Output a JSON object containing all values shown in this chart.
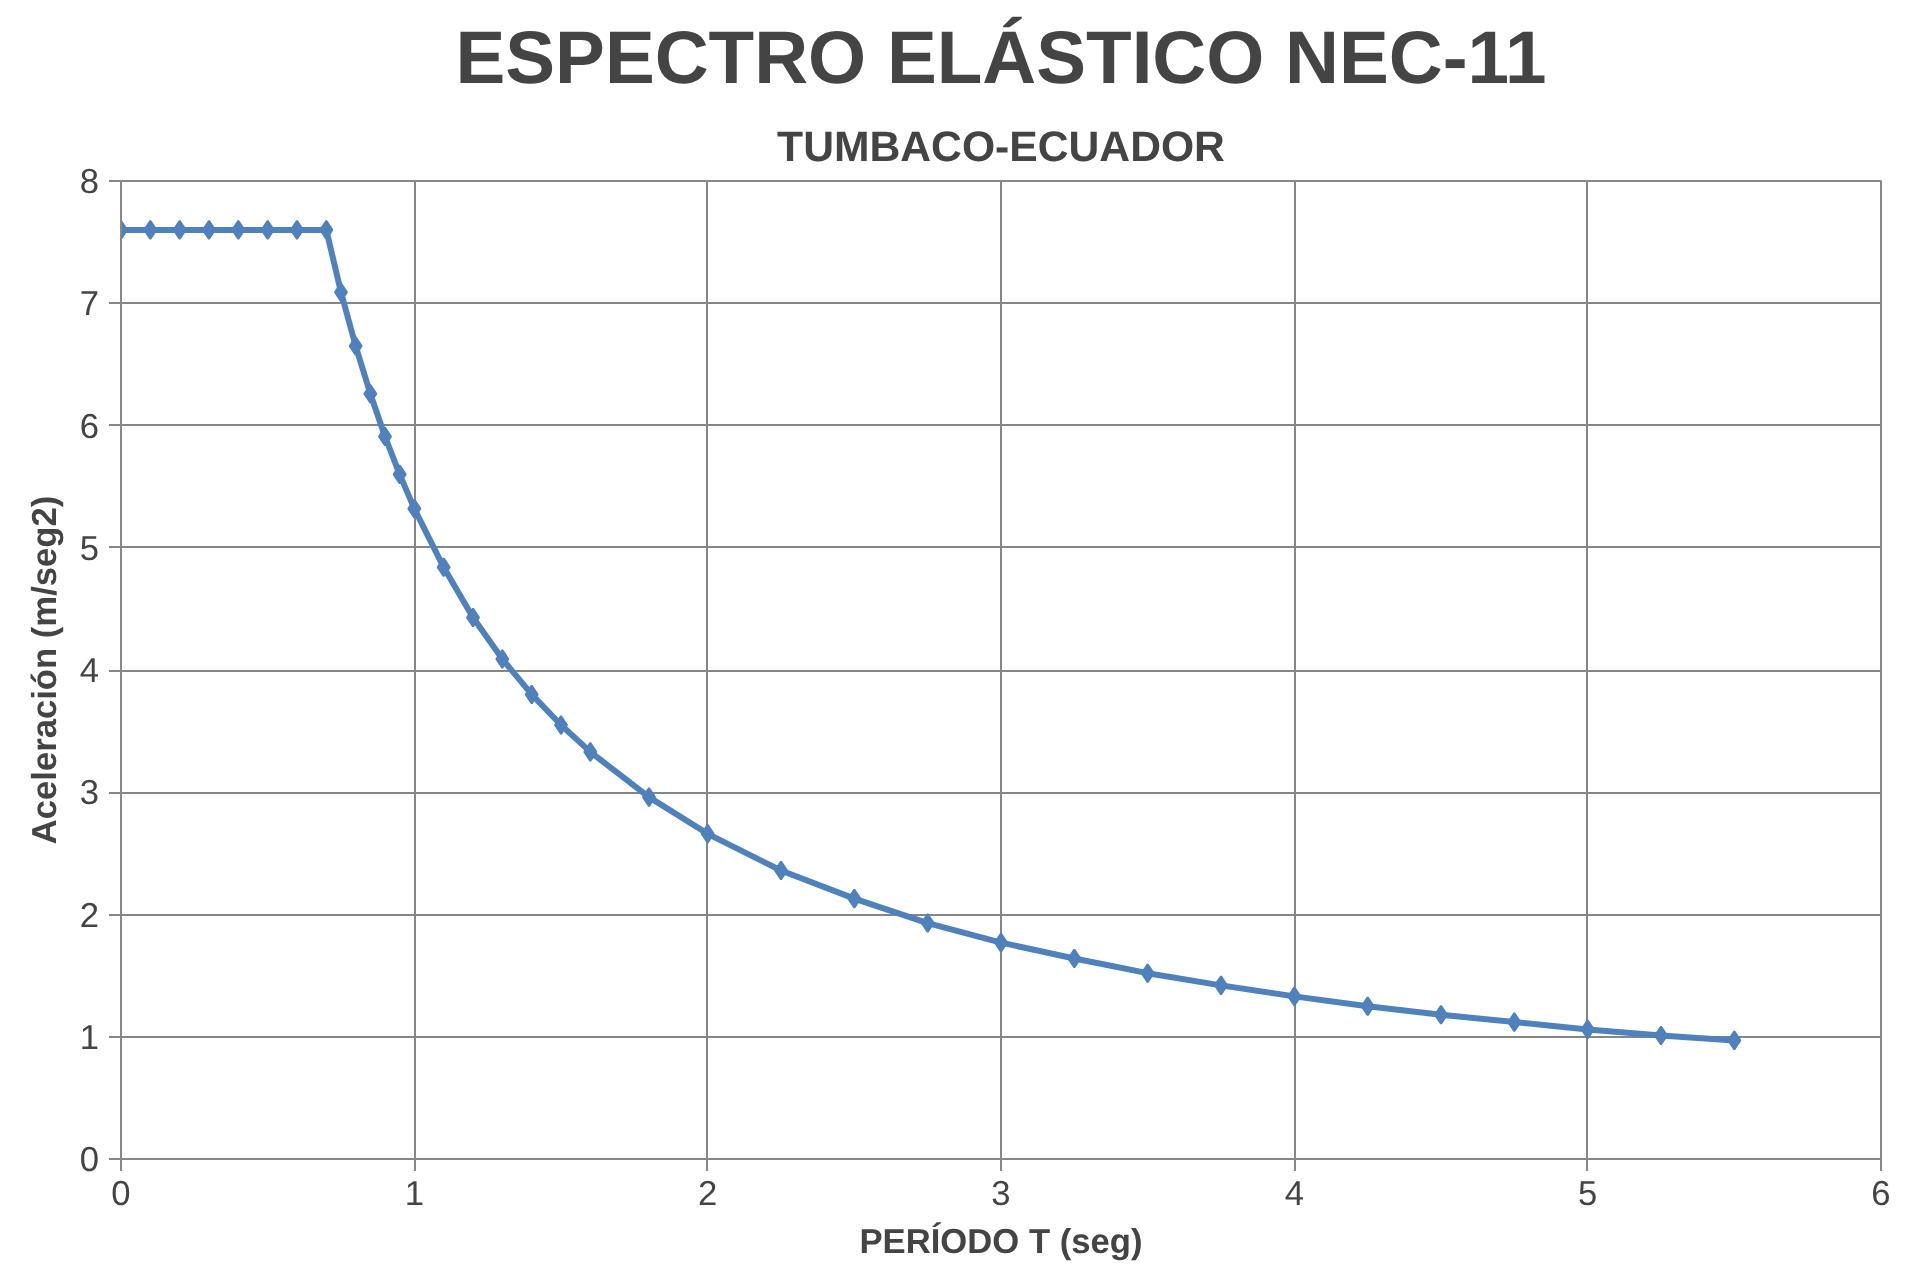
{
  "chart_data": {
    "type": "line",
    "title": "ESPECTRO ELÁSTICO NEC-11",
    "subtitle": "TUMBACO-ECUADOR",
    "xlabel": "PERÍODO T (seg)",
    "ylabel": "Aceleración (m/seg2)",
    "x": [
      0,
      0.1,
      0.2,
      0.3,
      0.4,
      0.5,
      0.6,
      0.7,
      0.75,
      0.8,
      0.85,
      0.9,
      0.95,
      1,
      1.1,
      1.2,
      1.3,
      1.4,
      1.5,
      1.6,
      1.8,
      2,
      2.25,
      2.5,
      2.75,
      3,
      3.25,
      3.5,
      3.75,
      4,
      4.25,
      4.5,
      4.75,
      5,
      5.25,
      5.5
    ],
    "series": [
      {
        "color": "#4f81bd",
        "values": [
          7.6,
          7.6,
          7.6,
          7.6,
          7.6,
          7.6,
          7.6,
          7.6,
          7.09,
          6.65,
          6.26,
          5.91,
          5.6,
          5.32,
          4.84,
          4.43,
          4.09,
          3.8,
          3.55,
          3.33,
          2.96,
          2.66,
          2.36,
          2.13,
          1.93,
          1.77,
          1.64,
          1.52,
          1.42,
          1.33,
          1.25,
          1.18,
          1.12,
          1.06,
          1.01,
          0.97
        ]
      }
    ],
    "xlim": [
      0,
      6
    ],
    "xticks": [
      0,
      1,
      2,
      3,
      4,
      5,
      6
    ],
    "ylim": [
      0,
      8
    ],
    "yticks": [
      0,
      1,
      2,
      3,
      4,
      5,
      6,
      7,
      8
    ],
    "grid": true,
    "marker": "diamond",
    "line_style": "solid"
  }
}
